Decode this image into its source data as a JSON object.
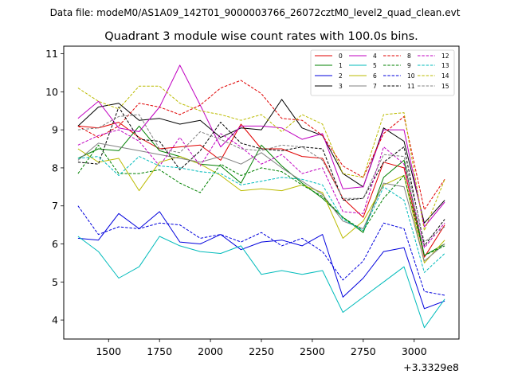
{
  "figure": {
    "suptitle": "Data file: modeM0/AS1A09_142T01_9000003766_26072cztM0_level2_quad_clean.evt"
  },
  "chart_data": {
    "type": "line",
    "title": "Quadrant 3 module wise count rates with 100.0s bins.",
    "xlabel": "",
    "ylabel": "",
    "x_offset_label": "+3.3329e8",
    "xlim": [
      1280,
      3220
    ],
    "ylim": [
      3.5,
      11.2
    ],
    "xticks": [
      1500,
      1750,
      2000,
      2250,
      2500,
      2750,
      3000
    ],
    "yticks": [
      4,
      5,
      6,
      7,
      8,
      9,
      10,
      11
    ],
    "grid": false,
    "legend_position": "upper-right",
    "x": [
      1350,
      1450,
      1550,
      1650,
      1750,
      1850,
      1950,
      2050,
      2150,
      2250,
      2350,
      2450,
      2550,
      2650,
      2750,
      2850,
      2950,
      3050,
      3150
    ],
    "series": [
      {
        "name": "0",
        "color": "#e00000",
        "dash": "solid",
        "values": [
          9.1,
          9.05,
          9.2,
          8.8,
          8.5,
          8.55,
          8.6,
          8.2,
          9.15,
          8.5,
          8.5,
          8.3,
          8.25,
          7.2,
          6.7,
          8.15,
          8.0,
          5.65,
          6.5
        ]
      },
      {
        "name": "1",
        "color": "#008000",
        "dash": "solid",
        "values": [
          8.25,
          8.5,
          8.45,
          9.1,
          8.45,
          8.3,
          8.1,
          8.05,
          7.6,
          8.6,
          8.05,
          7.6,
          7.2,
          6.7,
          6.3,
          7.75,
          8.2,
          5.7,
          6.0
        ]
      },
      {
        "name": "2",
        "color": "#0000dd",
        "dash": "solid",
        "values": [
          6.15,
          6.1,
          6.8,
          6.4,
          6.85,
          6.05,
          6.0,
          6.25,
          5.85,
          6.05,
          6.1,
          5.95,
          6.25,
          4.6,
          5.1,
          5.8,
          5.9,
          4.3,
          4.5
        ]
      },
      {
        "name": "3",
        "color": "#000000",
        "dash": "solid",
        "values": [
          9.1,
          9.6,
          9.7,
          9.25,
          9.3,
          9.15,
          9.25,
          8.8,
          9.05,
          9.0,
          9.8,
          9.05,
          8.85,
          7.85,
          7.5,
          9.05,
          8.7,
          6.55,
          7.15
        ]
      },
      {
        "name": "4",
        "color": "#c000c0",
        "dash": "solid",
        "values": [
          9.3,
          9.75,
          9.05,
          8.95,
          9.6,
          10.7,
          9.65,
          8.55,
          9.1,
          9.1,
          9.05,
          8.75,
          8.9,
          7.45,
          7.5,
          9.0,
          9.0,
          6.45,
          7.1
        ]
      },
      {
        "name": "5",
        "color": "#00bbbb",
        "dash": "solid",
        "values": [
          6.2,
          5.8,
          5.1,
          5.4,
          6.2,
          5.95,
          5.8,
          5.75,
          5.95,
          5.2,
          5.3,
          5.2,
          5.3,
          4.2,
          4.6,
          5.0,
          5.4,
          3.8,
          4.55
        ]
      },
      {
        "name": "6",
        "color": "#bbbb00",
        "dash": "solid",
        "values": [
          8.5,
          8.15,
          8.25,
          7.4,
          8.15,
          8.3,
          8.1,
          7.8,
          7.4,
          7.45,
          7.4,
          7.55,
          7.35,
          6.15,
          6.6,
          7.55,
          7.8,
          5.5,
          6.1
        ]
      },
      {
        "name": "7",
        "color": "#808080",
        "dash": "solid",
        "values": [
          8.2,
          8.65,
          8.55,
          8.45,
          8.35,
          8.25,
          8.15,
          8.3,
          8.1,
          8.4,
          8.0,
          7.65,
          7.3,
          6.6,
          6.4,
          7.6,
          7.5,
          5.55,
          6.0
        ]
      },
      {
        "name": "8",
        "color": "#e00000",
        "dash": "dashed",
        "values": [
          9.1,
          8.8,
          9.1,
          9.7,
          9.6,
          9.4,
          9.65,
          10.1,
          10.3,
          9.95,
          9.3,
          9.25,
          8.85,
          8.05,
          7.75,
          8.9,
          9.35,
          6.9,
          7.7
        ]
      },
      {
        "name": "9",
        "color": "#008000",
        "dash": "dashed",
        "values": [
          7.85,
          8.6,
          7.85,
          7.85,
          7.95,
          7.6,
          7.35,
          8.1,
          7.8,
          8.0,
          7.9,
          7.55,
          7.25,
          6.7,
          6.35,
          7.2,
          7.8,
          5.7,
          5.95
        ]
      },
      {
        "name": "10",
        "color": "#0000dd",
        "dash": "dashed",
        "values": [
          7.0,
          6.25,
          6.45,
          6.4,
          6.55,
          6.5,
          6.15,
          6.25,
          6.05,
          6.3,
          5.95,
          6.15,
          5.8,
          5.05,
          5.55,
          6.55,
          6.4,
          4.75,
          4.65
        ]
      },
      {
        "name": "11",
        "color": "#000000",
        "dash": "dashed",
        "values": [
          8.15,
          8.1,
          9.6,
          8.75,
          8.7,
          7.95,
          8.45,
          9.2,
          8.65,
          8.5,
          8.45,
          8.55,
          8.5,
          7.15,
          7.2,
          8.15,
          8.55,
          5.95,
          6.65
        ]
      },
      {
        "name": "12",
        "color": "#c000c0",
        "dash": "dashed",
        "values": [
          8.6,
          8.85,
          9.0,
          8.7,
          8.05,
          8.8,
          8.05,
          8.9,
          8.55,
          8.1,
          8.35,
          7.85,
          8.0,
          6.85,
          6.8,
          8.55,
          8.1,
          5.9,
          6.55
        ]
      },
      {
        "name": "13",
        "color": "#00bbbb",
        "dash": "dashed",
        "values": [
          8.25,
          8.3,
          7.8,
          8.3,
          8.05,
          8.0,
          7.9,
          7.85,
          7.55,
          7.65,
          7.75,
          7.7,
          7.55,
          6.65,
          6.35,
          7.5,
          7.15,
          5.25,
          5.75
        ]
      },
      {
        "name": "14",
        "color": "#bbbb00",
        "dash": "dashed",
        "values": [
          10.1,
          9.75,
          9.55,
          10.15,
          10.15,
          9.7,
          9.5,
          9.4,
          9.25,
          9.4,
          8.95,
          9.4,
          9.15,
          7.85,
          7.75,
          9.4,
          9.45,
          6.35,
          7.7
        ]
      },
      {
        "name": "15",
        "color": "#808080",
        "dash": "dashed",
        "values": [
          9.0,
          9.05,
          9.35,
          9.4,
          8.5,
          8.4,
          8.95,
          8.75,
          8.5,
          8.45,
          8.6,
          8.55,
          8.2,
          7.2,
          7.2,
          8.35,
          8.3,
          6.05,
          6.45
        ]
      }
    ]
  }
}
